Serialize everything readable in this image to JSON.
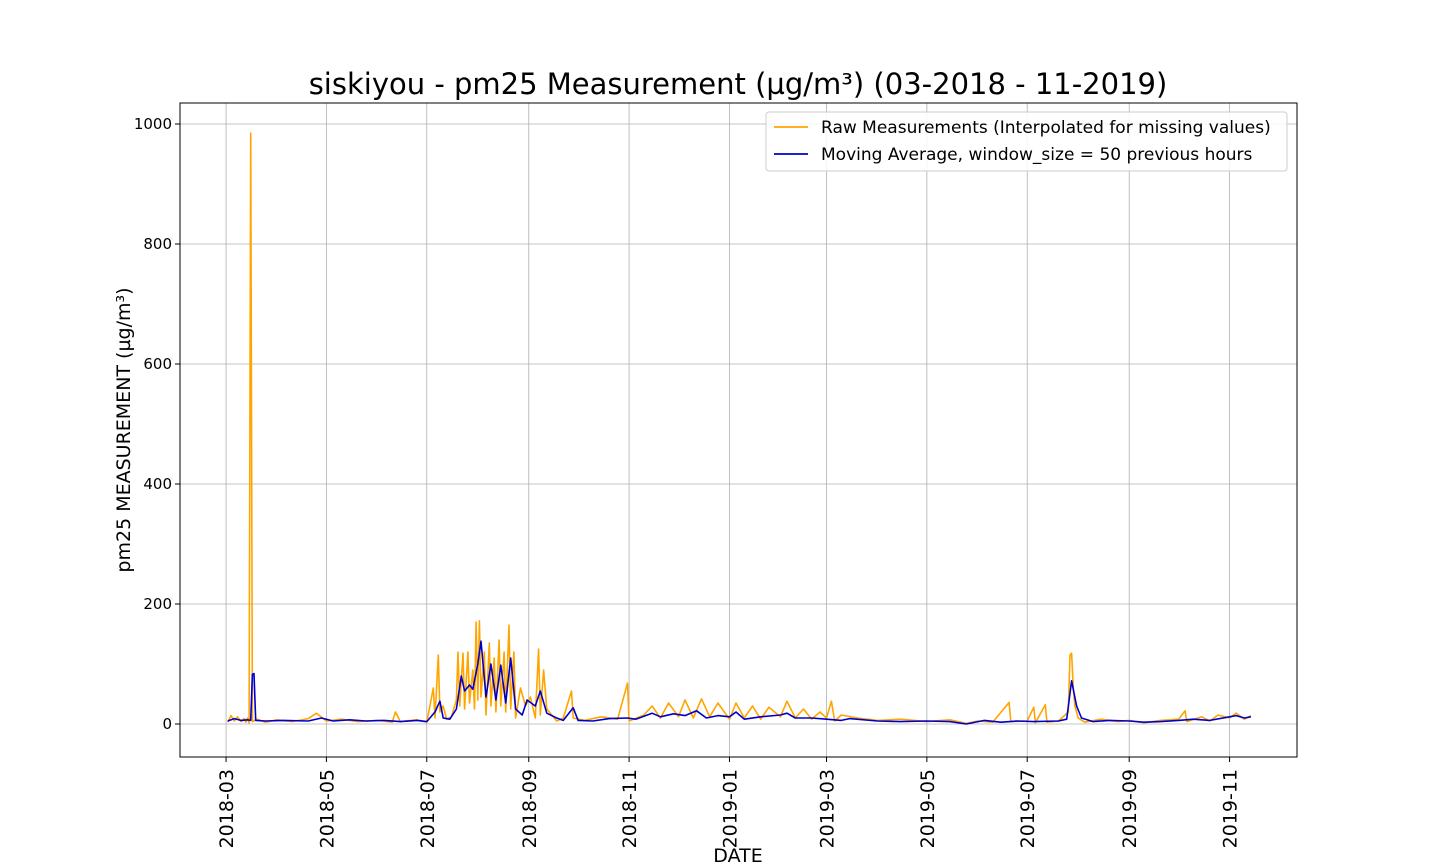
{
  "chart_data": {
    "type": "line",
    "title": "siskiyou - pm25 Measurement (µg/m³) (03-2018 - 11-2019)",
    "xlabel": "DATE",
    "ylabel": "pm25 MEASUREMENT (µg/m³)",
    "xlim": [
      "2018-02-01",
      "2019-12-12"
    ],
    "ylim": [
      -55,
      1035
    ],
    "grid": true,
    "legend_position": "top-right",
    "x_ticks": [
      "2018-03",
      "2018-05",
      "2018-07",
      "2018-09",
      "2018-11",
      "2019-01",
      "2019-03",
      "2019-05",
      "2019-07",
      "2019-09",
      "2019-11"
    ],
    "y_ticks": [
      0,
      200,
      400,
      600,
      800,
      1000
    ],
    "series": [
      {
        "name": "Raw Measurements (Interpolated for missing values)",
        "color": "#ffa500",
        "points": [
          [
            "2018-03-02",
            3
          ],
          [
            "2018-03-04",
            14
          ],
          [
            "2018-03-06",
            5
          ],
          [
            "2018-03-08",
            12
          ],
          [
            "2018-03-10",
            4
          ],
          [
            "2018-03-12",
            9
          ],
          [
            "2018-03-13",
            3
          ],
          [
            "2018-03-14",
            10
          ],
          [
            "2018-03-15",
            2
          ],
          [
            "2018-03-16",
            985
          ],
          [
            "2018-03-17",
            4
          ],
          [
            "2018-03-20",
            8
          ],
          [
            "2018-03-25",
            3
          ],
          [
            "2018-04-01",
            7
          ],
          [
            "2018-04-10",
            4
          ],
          [
            "2018-04-20",
            9
          ],
          [
            "2018-04-25",
            18
          ],
          [
            "2018-05-01",
            5
          ],
          [
            "2018-05-10",
            8
          ],
          [
            "2018-05-20",
            4
          ],
          [
            "2018-06-01",
            6
          ],
          [
            "2018-06-10",
            3
          ],
          [
            "2018-06-12",
            20
          ],
          [
            "2018-06-15",
            4
          ],
          [
            "2018-06-25",
            7
          ],
          [
            "2018-07-01",
            3
          ],
          [
            "2018-07-05",
            60
          ],
          [
            "2018-07-06",
            10
          ],
          [
            "2018-07-08",
            115
          ],
          [
            "2018-07-09",
            20
          ],
          [
            "2018-07-11",
            30
          ],
          [
            "2018-07-13",
            8
          ],
          [
            "2018-07-16",
            12
          ],
          [
            "2018-07-19",
            40
          ],
          [
            "2018-07-20",
            120
          ],
          [
            "2018-07-21",
            30
          ],
          [
            "2018-07-23",
            118
          ],
          [
            "2018-07-24",
            25
          ],
          [
            "2018-07-26",
            120
          ],
          [
            "2018-07-27",
            35
          ],
          [
            "2018-07-29",
            90
          ],
          [
            "2018-07-30",
            25
          ],
          [
            "2018-07-31",
            170
          ],
          [
            "2018-08-01",
            40
          ],
          [
            "2018-08-02",
            172
          ],
          [
            "2018-08-03",
            45
          ],
          [
            "2018-08-05",
            120
          ],
          [
            "2018-08-06",
            15
          ],
          [
            "2018-08-08",
            135
          ],
          [
            "2018-08-09",
            30
          ],
          [
            "2018-08-11",
            110
          ],
          [
            "2018-08-12",
            20
          ],
          [
            "2018-08-14",
            140
          ],
          [
            "2018-08-15",
            30
          ],
          [
            "2018-08-17",
            120
          ],
          [
            "2018-08-18",
            20
          ],
          [
            "2018-08-20",
            165
          ],
          [
            "2018-08-21",
            25
          ],
          [
            "2018-08-23",
            120
          ],
          [
            "2018-08-24",
            10
          ],
          [
            "2018-08-27",
            60
          ],
          [
            "2018-08-30",
            30
          ],
          [
            "2018-09-02",
            45
          ],
          [
            "2018-09-05",
            10
          ],
          [
            "2018-09-07",
            125
          ],
          [
            "2018-09-08",
            15
          ],
          [
            "2018-09-10",
            90
          ],
          [
            "2018-09-12",
            25
          ],
          [
            "2018-09-15",
            15
          ],
          [
            "2018-09-18",
            5
          ],
          [
            "2018-09-22",
            10
          ],
          [
            "2018-09-27",
            55
          ],
          [
            "2018-09-28",
            10
          ],
          [
            "2018-10-05",
            6
          ],
          [
            "2018-10-15",
            12
          ],
          [
            "2018-10-25",
            8
          ],
          [
            "2018-10-31",
            68
          ],
          [
            "2018-11-01",
            5
          ],
          [
            "2018-11-10",
            15
          ],
          [
            "2018-11-15",
            30
          ],
          [
            "2018-11-20",
            10
          ],
          [
            "2018-11-25",
            35
          ],
          [
            "2018-12-01",
            12
          ],
          [
            "2018-12-05",
            40
          ],
          [
            "2018-12-10",
            10
          ],
          [
            "2018-12-15",
            42
          ],
          [
            "2018-12-20",
            12
          ],
          [
            "2018-12-25",
            35
          ],
          [
            "2019-01-01",
            8
          ],
          [
            "2019-01-05",
            35
          ],
          [
            "2019-01-10",
            10
          ],
          [
            "2019-01-15",
            30
          ],
          [
            "2019-01-20",
            8
          ],
          [
            "2019-01-25",
            28
          ],
          [
            "2019-02-01",
            12
          ],
          [
            "2019-02-05",
            38
          ],
          [
            "2019-02-10",
            10
          ],
          [
            "2019-02-15",
            25
          ],
          [
            "2019-02-20",
            8
          ],
          [
            "2019-02-25",
            20
          ],
          [
            "2019-03-01",
            10
          ],
          [
            "2019-03-04",
            38
          ],
          [
            "2019-03-06",
            5
          ],
          [
            "2019-03-10",
            15
          ],
          [
            "2019-03-20",
            10
          ],
          [
            "2019-04-01",
            6
          ],
          [
            "2019-04-15",
            8
          ],
          [
            "2019-05-01",
            4
          ],
          [
            "2019-05-15",
            7
          ],
          [
            "2019-05-25",
            1
          ],
          [
            "2019-06-01",
            5
          ],
          [
            "2019-06-10",
            3
          ],
          [
            "2019-06-20",
            36
          ],
          [
            "2019-06-21",
            4
          ],
          [
            "2019-07-01",
            5
          ],
          [
            "2019-07-05",
            28
          ],
          [
            "2019-07-06",
            2
          ],
          [
            "2019-07-12",
            32
          ],
          [
            "2019-07-13",
            3
          ],
          [
            "2019-07-20",
            5
          ],
          [
            "2019-07-26",
            20
          ],
          [
            "2019-07-27",
            115
          ],
          [
            "2019-07-28",
            118
          ],
          [
            "2019-07-29",
            60
          ],
          [
            "2019-07-30",
            30
          ],
          [
            "2019-08-01",
            10
          ],
          [
            "2019-08-05",
            3
          ],
          [
            "2019-08-15",
            8
          ],
          [
            "2019-08-25",
            4
          ],
          [
            "2019-09-01",
            6
          ],
          [
            "2019-09-10",
            2
          ],
          [
            "2019-09-20",
            6
          ],
          [
            "2019-10-01",
            8
          ],
          [
            "2019-10-05",
            22
          ],
          [
            "2019-10-06",
            4
          ],
          [
            "2019-10-15",
            12
          ],
          [
            "2019-10-20",
            5
          ],
          [
            "2019-10-25",
            15
          ],
          [
            "2019-11-01",
            10
          ],
          [
            "2019-11-05",
            18
          ],
          [
            "2019-11-10",
            8
          ],
          [
            "2019-11-14",
            14
          ]
        ]
      },
      {
        "name": "Moving Average, window_size = 50 previous hours",
        "color": "#0000cd",
        "points": [
          [
            "2018-03-02",
            5
          ],
          [
            "2018-03-06",
            9
          ],
          [
            "2018-03-10",
            6
          ],
          [
            "2018-03-14",
            7
          ],
          [
            "2018-03-16",
            6
          ],
          [
            "2018-03-17",
            83
          ],
          [
            "2018-03-18",
            84
          ],
          [
            "2018-03-19",
            6
          ],
          [
            "2018-03-25",
            5
          ],
          [
            "2018-04-05",
            6
          ],
          [
            "2018-04-20",
            5
          ],
          [
            "2018-04-28",
            10
          ],
          [
            "2018-05-05",
            5
          ],
          [
            "2018-05-15",
            7
          ],
          [
            "2018-05-25",
            5
          ],
          [
            "2018-06-05",
            6
          ],
          [
            "2018-06-15",
            4
          ],
          [
            "2018-06-25",
            6
          ],
          [
            "2018-07-01",
            4
          ],
          [
            "2018-07-06",
            20
          ],
          [
            "2018-07-09",
            38
          ],
          [
            "2018-07-11",
            10
          ],
          [
            "2018-07-15",
            8
          ],
          [
            "2018-07-19",
            25
          ],
          [
            "2018-07-22",
            80
          ],
          [
            "2018-07-24",
            55
          ],
          [
            "2018-07-27",
            65
          ],
          [
            "2018-07-29",
            58
          ],
          [
            "2018-08-01",
            100
          ],
          [
            "2018-08-03",
            138
          ],
          [
            "2018-08-06",
            45
          ],
          [
            "2018-08-09",
            100
          ],
          [
            "2018-08-12",
            40
          ],
          [
            "2018-08-15",
            98
          ],
          [
            "2018-08-18",
            35
          ],
          [
            "2018-08-21",
            110
          ],
          [
            "2018-08-24",
            25
          ],
          [
            "2018-08-28",
            15
          ],
          [
            "2018-08-31",
            40
          ],
          [
            "2018-09-05",
            30
          ],
          [
            "2018-09-08",
            55
          ],
          [
            "2018-09-12",
            18
          ],
          [
            "2018-09-18",
            10
          ],
          [
            "2018-09-22",
            6
          ],
          [
            "2018-09-28",
            27
          ],
          [
            "2018-10-01",
            6
          ],
          [
            "2018-10-10",
            5
          ],
          [
            "2018-10-20",
            9
          ],
          [
            "2018-10-31",
            10
          ],
          [
            "2018-11-05",
            8
          ],
          [
            "2018-11-15",
            18
          ],
          [
            "2018-11-20",
            12
          ],
          [
            "2018-11-28",
            17
          ],
          [
            "2018-12-05",
            14
          ],
          [
            "2018-12-12",
            22
          ],
          [
            "2018-12-18",
            10
          ],
          [
            "2018-12-25",
            14
          ],
          [
            "2019-01-01",
            12
          ],
          [
            "2019-01-05",
            20
          ],
          [
            "2019-01-10",
            8
          ],
          [
            "2019-01-20",
            12
          ],
          [
            "2019-02-01",
            15
          ],
          [
            "2019-02-05",
            18
          ],
          [
            "2019-02-10",
            10
          ],
          [
            "2019-02-20",
            10
          ],
          [
            "2019-03-01",
            8
          ],
          [
            "2019-03-10",
            6
          ],
          [
            "2019-03-15",
            9
          ],
          [
            "2019-04-01",
            5
          ],
          [
            "2019-04-15",
            4
          ],
          [
            "2019-05-01",
            5
          ],
          [
            "2019-05-15",
            4
          ],
          [
            "2019-05-25",
            0
          ],
          [
            "2019-06-05",
            6
          ],
          [
            "2019-06-15",
            3
          ],
          [
            "2019-06-25",
            5
          ],
          [
            "2019-07-05",
            4
          ],
          [
            "2019-07-20",
            5
          ],
          [
            "2019-07-25",
            8
          ],
          [
            "2019-07-28",
            72
          ],
          [
            "2019-07-31",
            30
          ],
          [
            "2019-08-03",
            10
          ],
          [
            "2019-08-10",
            4
          ],
          [
            "2019-08-20",
            6
          ],
          [
            "2019-09-01",
            5
          ],
          [
            "2019-09-10",
            3
          ],
          [
            "2019-09-20",
            4
          ],
          [
            "2019-10-01",
            6
          ],
          [
            "2019-10-10",
            8
          ],
          [
            "2019-10-20",
            6
          ],
          [
            "2019-11-01",
            12
          ],
          [
            "2019-11-05",
            14
          ],
          [
            "2019-11-10",
            10
          ],
          [
            "2019-11-14",
            12
          ]
        ]
      }
    ]
  }
}
